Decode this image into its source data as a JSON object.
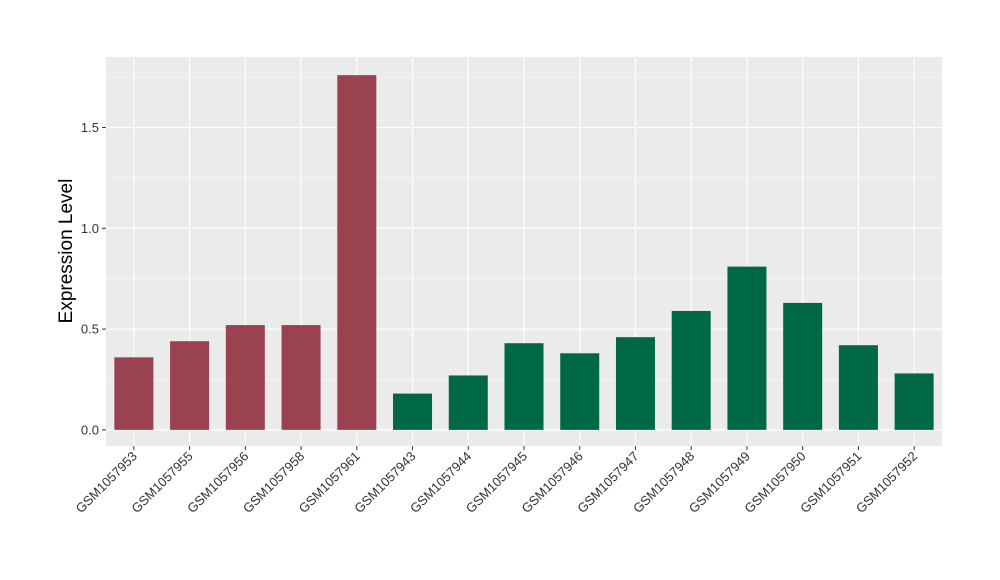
{
  "chart_data": {
    "type": "bar",
    "title": "",
    "xlabel": "",
    "ylabel": "Expression Level",
    "ylim": [
      -0.08,
      1.85
    ],
    "yticks": [
      0.0,
      0.5,
      1.0,
      1.5
    ],
    "ytick_labels": [
      "0.0",
      "0.5",
      "1.0",
      "1.5"
    ],
    "grid": true,
    "legend": "none",
    "categories": [
      "GSM1057953",
      "GSM1057955",
      "GSM1057956",
      "GSM1057958",
      "GSM1057961",
      "GSM1057943",
      "GSM1057944",
      "GSM1057945",
      "GSM1057946",
      "GSM1057947",
      "GSM1057948",
      "GSM1057949",
      "GSM1057950",
      "GSM1057951",
      "GSM1057952"
    ],
    "values": [
      0.36,
      0.44,
      0.52,
      0.52,
      1.76,
      0.18,
      0.27,
      0.43,
      0.38,
      0.46,
      0.59,
      0.81,
      0.63,
      0.42,
      0.28
    ],
    "bar_colors": [
      "#9a4250",
      "#9a4250",
      "#9a4250",
      "#9a4250",
      "#9a4250",
      "#006846",
      "#006846",
      "#006846",
      "#006846",
      "#006846",
      "#006846",
      "#006846",
      "#006846",
      "#006846",
      "#006846"
    ],
    "colors": {
      "panel_background": "#ebebeb",
      "grid_major": "#ffffff",
      "grid_minor": "#f5f5f5",
      "tick_mark": "#333333"
    }
  }
}
